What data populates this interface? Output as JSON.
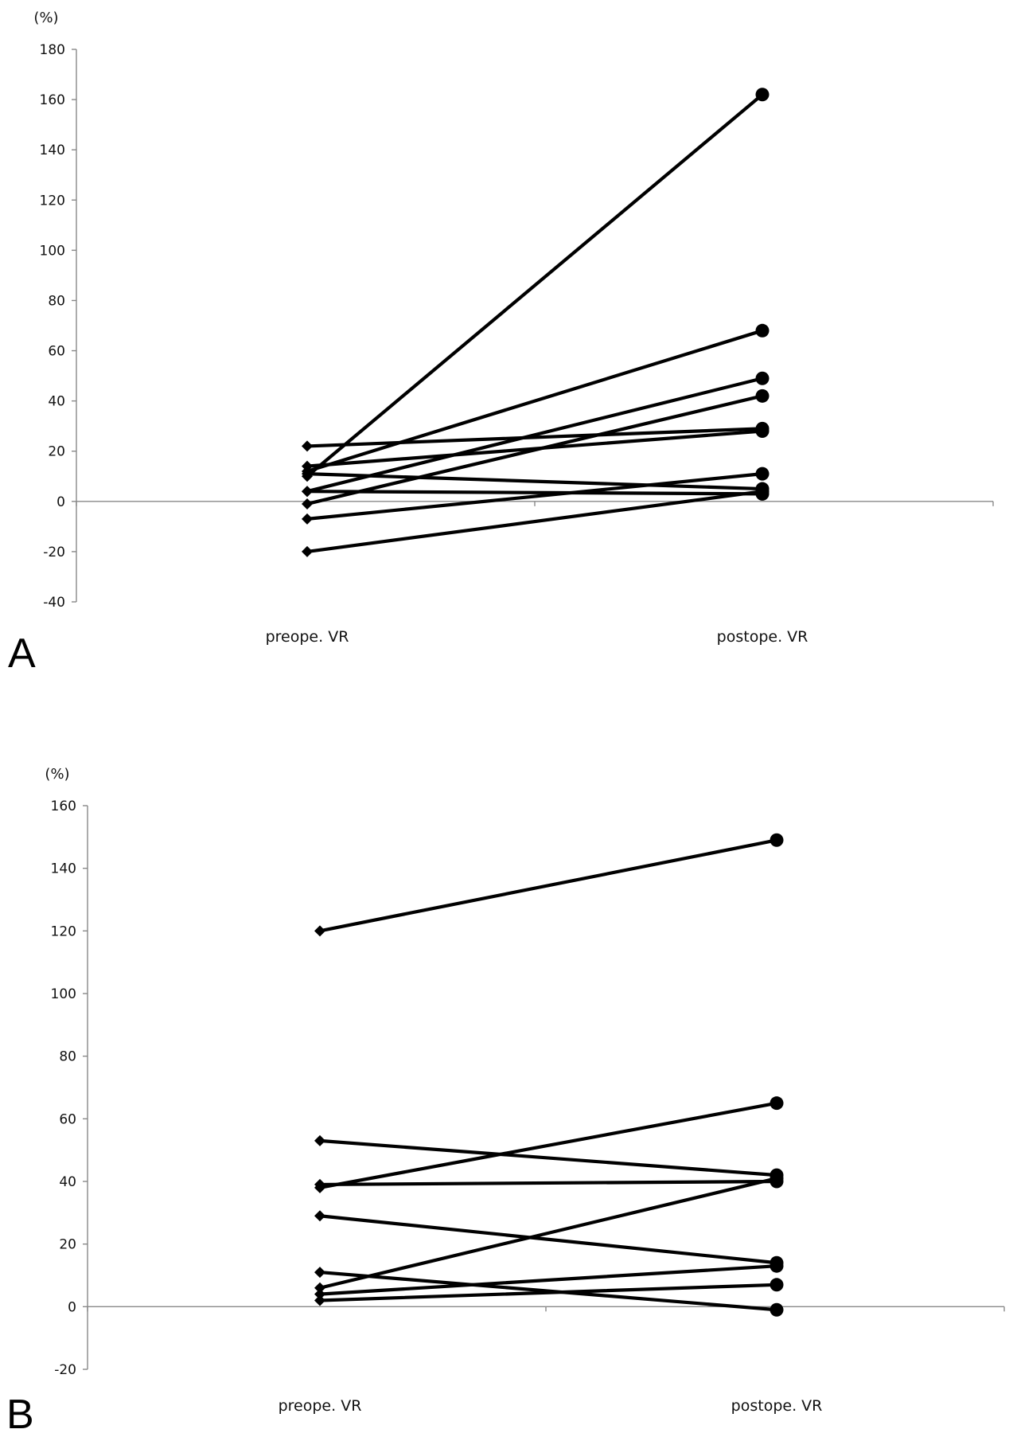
{
  "chart_data": [
    {
      "type": "line",
      "panel_label": "A",
      "unit_label": "(%)",
      "categories": [
        "preope. VR",
        "postope. VR"
      ],
      "ylim": [
        -40,
        180
      ],
      "yticks": [
        -40,
        -20,
        0,
        20,
        40,
        60,
        80,
        100,
        120,
        140,
        160,
        180
      ],
      "grid": false,
      "series": [
        {
          "values": [
            10,
            162
          ]
        },
        {
          "values": [
            12,
            68
          ]
        },
        {
          "values": [
            4,
            49
          ]
        },
        {
          "values": [
            -1,
            42
          ]
        },
        {
          "values": [
            22,
            29
          ]
        },
        {
          "values": [
            14,
            28
          ]
        },
        {
          "values": [
            -20,
            4
          ]
        },
        {
          "values": [
            -7,
            11
          ]
        },
        {
          "values": [
            11,
            5
          ]
        },
        {
          "values": [
            4,
            3
          ]
        }
      ]
    },
    {
      "type": "line",
      "panel_label": "B",
      "unit_label": "(%)",
      "categories": [
        "preope. VR",
        "postope. VR"
      ],
      "ylim": [
        -20,
        160
      ],
      "yticks": [
        -20,
        0,
        20,
        40,
        60,
        80,
        100,
        120,
        140,
        160
      ],
      "grid": false,
      "series": [
        {
          "values": [
            120,
            149
          ]
        },
        {
          "values": [
            53,
            42
          ]
        },
        {
          "values": [
            39,
            40
          ]
        },
        {
          "values": [
            38,
            65
          ]
        },
        {
          "values": [
            29,
            14
          ]
        },
        {
          "values": [
            11,
            -1
          ]
        },
        {
          "values": [
            6,
            41
          ]
        },
        {
          "values": [
            4,
            13
          ]
        },
        {
          "values": [
            2,
            7
          ]
        }
      ]
    }
  ]
}
